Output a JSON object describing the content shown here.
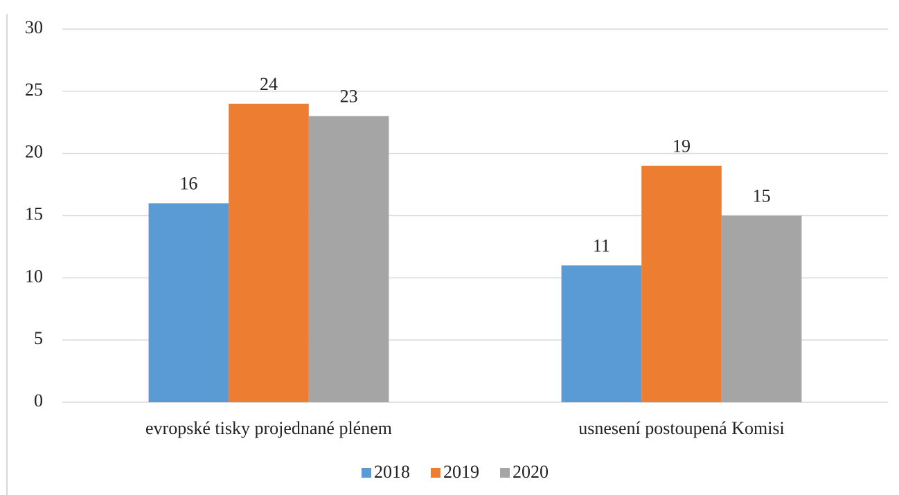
{
  "chart_data": {
    "type": "bar",
    "categories": [
      "evropské tisky projednané plénem",
      "usnesení postoupená Komisi"
    ],
    "series": [
      {
        "name": "2018",
        "color": "#5b9bd5",
        "values": [
          16,
          11
        ]
      },
      {
        "name": "2019",
        "color": "#ed7d31",
        "values": [
          24,
          19
        ]
      },
      {
        "name": "2020",
        "color": "#a5a5a5",
        "values": [
          23,
          15
        ]
      }
    ],
    "ylim": [
      0,
      30
    ],
    "yticks": [
      0,
      5,
      10,
      15,
      20,
      25,
      30
    ],
    "grid": true,
    "legend": "bottom"
  }
}
